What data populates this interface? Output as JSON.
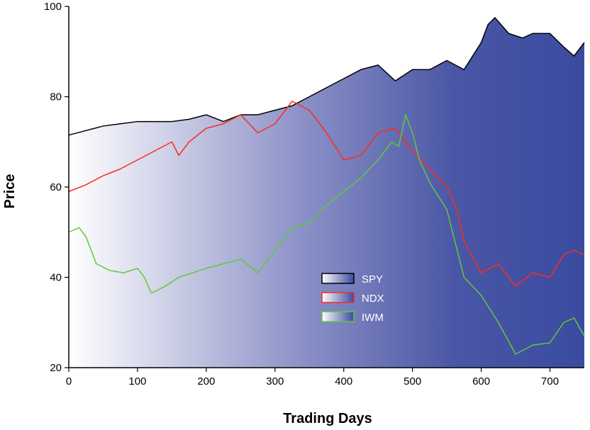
{
  "chart_data": {
    "type": "area",
    "title": "",
    "xlabel": "Trading Days",
    "ylabel": "Price",
    "xlim": [
      0,
      750
    ],
    "ylim": [
      20,
      100
    ],
    "x_ticks": [
      0,
      100,
      200,
      300,
      400,
      500,
      600,
      700
    ],
    "y_ticks": [
      20,
      40,
      60,
      80,
      100
    ],
    "grid": false,
    "legend_position": "center",
    "background_gradient": {
      "from": "#ffffff",
      "to": "#3a4b9f",
      "direction": "left-to-right"
    },
    "series": [
      {
        "name": "SPY",
        "color": "#000000",
        "style": "area",
        "points": [
          [
            0,
            71.5
          ],
          [
            25,
            72.5
          ],
          [
            50,
            73.5
          ],
          [
            75,
            74
          ],
          [
            100,
            74.5
          ],
          [
            125,
            74.5
          ],
          [
            150,
            74.5
          ],
          [
            175,
            75
          ],
          [
            200,
            76
          ],
          [
            225,
            74.5
          ],
          [
            250,
            76
          ],
          [
            275,
            76
          ],
          [
            300,
            77
          ],
          [
            325,
            78
          ],
          [
            350,
            80
          ],
          [
            375,
            82
          ],
          [
            400,
            84
          ],
          [
            425,
            86
          ],
          [
            450,
            87
          ],
          [
            475,
            83.5
          ],
          [
            500,
            86
          ],
          [
            525,
            86
          ],
          [
            550,
            88
          ],
          [
            575,
            86
          ],
          [
            600,
            92
          ],
          [
            610,
            96
          ],
          [
            620,
            97.5
          ],
          [
            640,
            94
          ],
          [
            660,
            93
          ],
          [
            675,
            94
          ],
          [
            700,
            94
          ],
          [
            720,
            91
          ],
          [
            735,
            89
          ],
          [
            750,
            92
          ]
        ]
      },
      {
        "name": "NDX",
        "color": "#ff2a1e",
        "style": "line",
        "points": [
          [
            0,
            59
          ],
          [
            25,
            60.5
          ],
          [
            50,
            62.5
          ],
          [
            75,
            64
          ],
          [
            100,
            66
          ],
          [
            125,
            68
          ],
          [
            150,
            70
          ],
          [
            160,
            67
          ],
          [
            175,
            70
          ],
          [
            200,
            73
          ],
          [
            225,
            74
          ],
          [
            250,
            76
          ],
          [
            275,
            72
          ],
          [
            300,
            74
          ],
          [
            325,
            79
          ],
          [
            350,
            77
          ],
          [
            375,
            72
          ],
          [
            400,
            66
          ],
          [
            425,
            67
          ],
          [
            450,
            72
          ],
          [
            475,
            73
          ],
          [
            500,
            68
          ],
          [
            525,
            64
          ],
          [
            550,
            60
          ],
          [
            565,
            55
          ],
          [
            575,
            48
          ],
          [
            600,
            41
          ],
          [
            625,
            43
          ],
          [
            650,
            38
          ],
          [
            675,
            41
          ],
          [
            700,
            40
          ],
          [
            720,
            45
          ],
          [
            735,
            46
          ],
          [
            750,
            45
          ]
        ]
      },
      {
        "name": "IWM",
        "color": "#5fc93a",
        "style": "line",
        "points": [
          [
            0,
            50
          ],
          [
            15,
            51
          ],
          [
            25,
            49
          ],
          [
            40,
            43
          ],
          [
            60,
            41.5
          ],
          [
            80,
            41
          ],
          [
            100,
            42
          ],
          [
            110,
            40
          ],
          [
            120,
            36.5
          ],
          [
            140,
            38
          ],
          [
            160,
            40
          ],
          [
            180,
            41
          ],
          [
            200,
            42
          ],
          [
            225,
            43
          ],
          [
            250,
            44
          ],
          [
            275,
            41
          ],
          [
            300,
            46
          ],
          [
            325,
            51
          ],
          [
            350,
            52
          ],
          [
            375,
            56
          ],
          [
            400,
            59
          ],
          [
            425,
            62
          ],
          [
            450,
            66
          ],
          [
            470,
            70
          ],
          [
            480,
            69
          ],
          [
            490,
            76
          ],
          [
            500,
            72
          ],
          [
            510,
            66
          ],
          [
            525,
            61
          ],
          [
            550,
            55
          ],
          [
            575,
            40
          ],
          [
            600,
            36
          ],
          [
            625,
            30
          ],
          [
            650,
            23
          ],
          [
            675,
            25
          ],
          [
            700,
            25.5
          ],
          [
            720,
            30
          ],
          [
            735,
            31
          ],
          [
            750,
            27
          ]
        ]
      }
    ]
  }
}
